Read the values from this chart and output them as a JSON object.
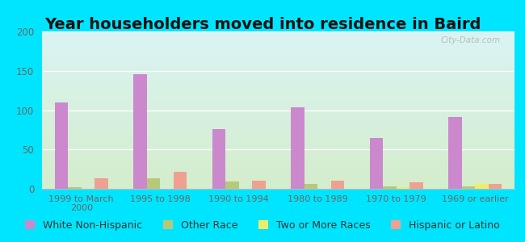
{
  "title": "Year householders moved into residence in Baird",
  "categories": [
    "1999 to March\n2000",
    "1995 to 1998",
    "1990 to 1994",
    "1980 to 1989",
    "1970 to 1979",
    "1969 or earlier"
  ],
  "series": {
    "White Non-Hispanic": [
      110,
      146,
      76,
      104,
      65,
      91
    ],
    "Other Race": [
      2,
      13,
      9,
      6,
      3,
      3
    ],
    "Two or More Races": [
      0,
      0,
      0,
      0,
      2,
      6
    ],
    "Hispanic or Latino": [
      13,
      22,
      10,
      10,
      8,
      6
    ]
  },
  "colors": {
    "White Non-Hispanic": "#cc88cc",
    "Other Race": "#b8c87a",
    "Two or More Races": "#eeee66",
    "Hispanic or Latino": "#f0a090"
  },
  "ylim": [
    0,
    200
  ],
  "yticks": [
    0,
    50,
    100,
    150,
    200
  ],
  "background_top": "#daf4f4",
  "background_bottom": "#d4edcc",
  "outer_background": "#00e5ff",
  "title_fontsize": 14,
  "bar_width": 0.17,
  "legend_fontsize": 9,
  "watermark": "City-Data.com"
}
